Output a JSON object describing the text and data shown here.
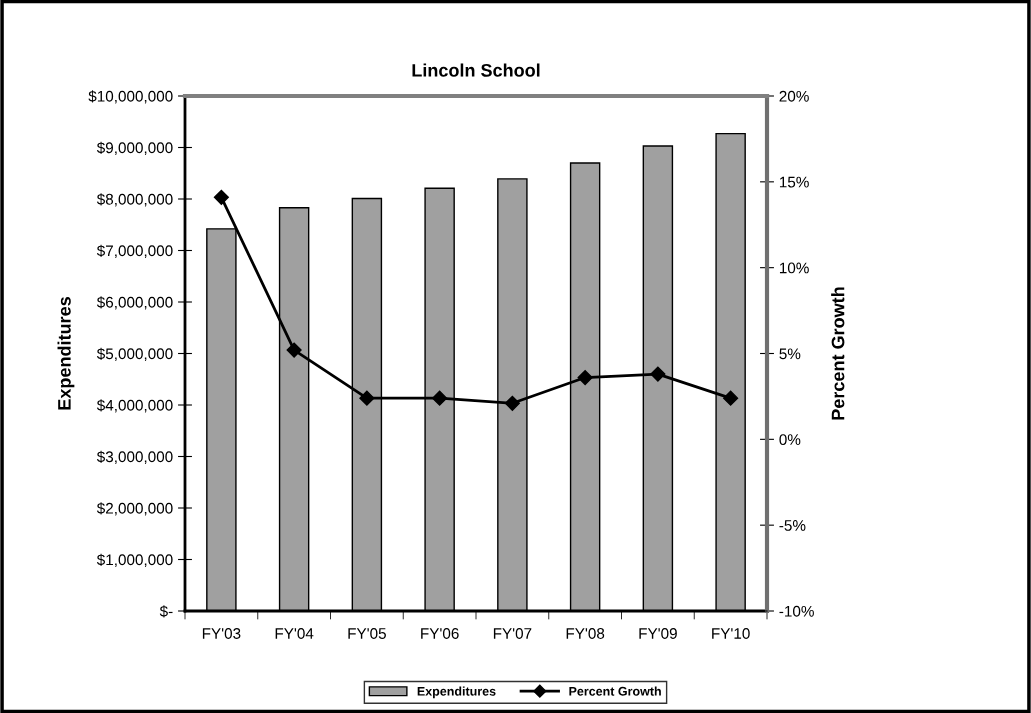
{
  "chart_data": {
    "type": "bar",
    "title": "Lincoln School",
    "ylabel": "Expenditures",
    "y2label": "Percent Growth",
    "categories": [
      "FY'03",
      "FY'04",
      "FY'05",
      "FY'06",
      "FY'07",
      "FY'08",
      "FY'09",
      "FY'10"
    ],
    "series": [
      {
        "name": "Expenditures",
        "color": "#a0a0a0",
        "values": [
          7420000,
          7830000,
          8010000,
          8210000,
          8390000,
          8700000,
          9030000,
          9270000
        ]
      },
      {
        "name": "Percent Growth",
        "type": "line",
        "axis": "y2",
        "color": "#000000",
        "marker": "diamond",
        "values": [
          14.1,
          5.2,
          2.4,
          2.4,
          2.1,
          3.6,
          3.8,
          2.4
        ]
      }
    ],
    "ylim": [
      0,
      10000000
    ],
    "yticks": [
      {
        "value": 0,
        "label": "$-"
      },
      {
        "value": 1000000,
        "label": "$1,000,000"
      },
      {
        "value": 2000000,
        "label": "$2,000,000"
      },
      {
        "value": 3000000,
        "label": "$3,000,000"
      },
      {
        "value": 4000000,
        "label": "$4,000,000"
      },
      {
        "value": 5000000,
        "label": "$5,000,000"
      },
      {
        "value": 6000000,
        "label": "$6,000,000"
      },
      {
        "value": 7000000,
        "label": "$7,000,000"
      },
      {
        "value": 8000000,
        "label": "$8,000,000"
      },
      {
        "value": 9000000,
        "label": "$9,000,000"
      },
      {
        "value": 10000000,
        "label": "$10,000,000"
      }
    ],
    "y2lim": [
      -10,
      20
    ],
    "y2ticks": [
      {
        "value": -10,
        "label": "-10%"
      },
      {
        "value": -5,
        "label": "-5%"
      },
      {
        "value": 0,
        "label": "0%"
      },
      {
        "value": 5,
        "label": "5%"
      },
      {
        "value": 10,
        "label": "10%"
      },
      {
        "value": 15,
        "label": "15%"
      },
      {
        "value": 20,
        "label": "20%"
      }
    ],
    "legend": "bottom",
    "grid": false
  }
}
